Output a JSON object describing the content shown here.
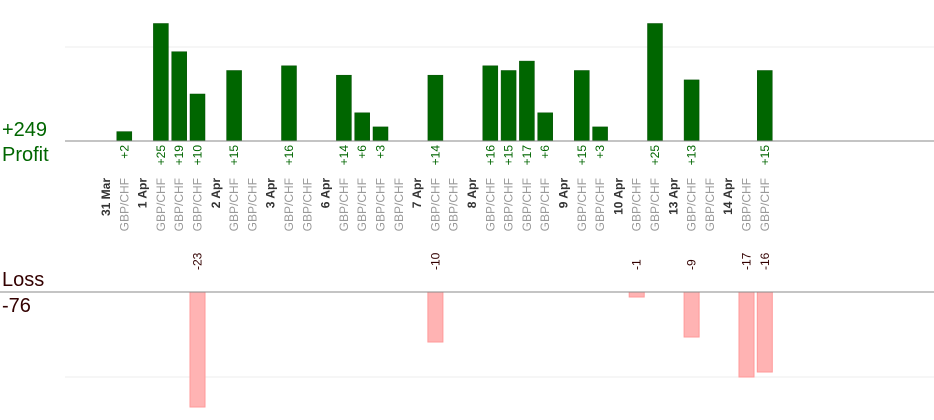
{
  "summary": {
    "profit_label": "Profit",
    "profit_total": "+249",
    "loss_label": "Loss",
    "loss_total": "-76"
  },
  "colors": {
    "profit_bar": "#006600",
    "loss_bar": "#ffb3b3",
    "profit_text": "#006600",
    "loss_text": "#330000",
    "pair_text": "#999999",
    "date_text": "#333333",
    "axis": "#888888",
    "grid": "#eeeeee"
  },
  "chart_data": {
    "type": "bar",
    "pair": "GBP/CHF",
    "profit_ylim": [
      0,
      30
    ],
    "loss_ylim": [
      0,
      20
    ],
    "grid": true,
    "dates": [
      {
        "label": "31 Mar",
        "slot": 0
      },
      {
        "label": "1 Apr",
        "slot": 2
      },
      {
        "label": "2 Apr",
        "slot": 6
      },
      {
        "label": "3 Apr",
        "slot": 9
      },
      {
        "label": "6 Apr",
        "slot": 12
      },
      {
        "label": "7 Apr",
        "slot": 17
      },
      {
        "label": "8 Apr",
        "slot": 20
      },
      {
        "label": "9 Apr",
        "slot": 25
      },
      {
        "label": "10 Apr",
        "slot": 28
      },
      {
        "label": "13 Apr",
        "slot": 31
      },
      {
        "label": "14 Apr",
        "slot": 34
      }
    ],
    "trades": [
      {
        "slot": 1,
        "value": 2,
        "label": "+2"
      },
      {
        "slot": 3,
        "value": 25,
        "label": "+25"
      },
      {
        "slot": 4,
        "value": 19,
        "label": "+19"
      },
      {
        "slot": 5,
        "value": -23,
        "label": "-23"
      },
      {
        "slot": 5,
        "value": 10,
        "label": "+10"
      },
      {
        "slot": 7,
        "value": 15,
        "label": "+15"
      },
      {
        "slot": 10,
        "value": 16,
        "label": "+16"
      },
      {
        "slot": 13,
        "value": 14,
        "label": "+14"
      },
      {
        "slot": 14,
        "value": 6,
        "label": "+6"
      },
      {
        "slot": 15,
        "value": 3,
        "label": "+3"
      },
      {
        "slot": 18,
        "value": -10,
        "label": "-10"
      },
      {
        "slot": 18,
        "value": 14,
        "label": "+14"
      },
      {
        "slot": 21,
        "value": 16,
        "label": "+16"
      },
      {
        "slot": 22,
        "value": 15,
        "label": "+15"
      },
      {
        "slot": 23,
        "value": 17,
        "label": "+17"
      },
      {
        "slot": 24,
        "value": 6,
        "label": "+6"
      },
      {
        "slot": 26,
        "value": 15,
        "label": "+15"
      },
      {
        "slot": 27,
        "value": 3,
        "label": "+3"
      },
      {
        "slot": 29,
        "value": -1,
        "label": "-1"
      },
      {
        "slot": 30,
        "value": 25,
        "label": "+25"
      },
      {
        "slot": 32,
        "value": -9,
        "label": "-9"
      },
      {
        "slot": 32,
        "value": 13,
        "label": "+13"
      },
      {
        "slot": 35,
        "value": -17,
        "label": "-17"
      },
      {
        "slot": 36,
        "value": -16,
        "label": "-16"
      },
      {
        "slot": 36,
        "value": 15,
        "label": "+15"
      }
    ]
  }
}
